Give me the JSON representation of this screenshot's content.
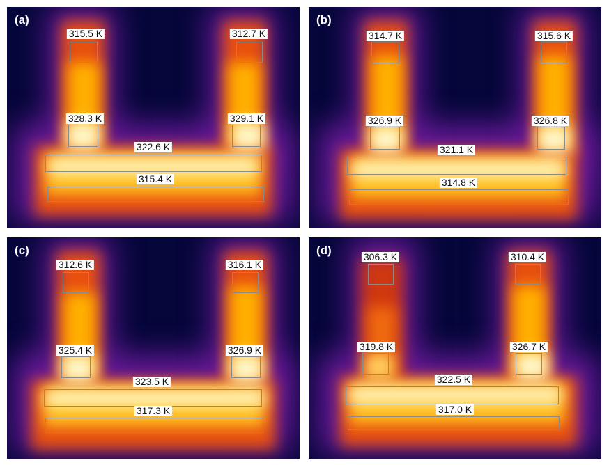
{
  "panels": [
    {
      "id": "a",
      "label": "(a)",
      "top_left": "315.5 K",
      "top_right": "312.7 K",
      "mid_left": "328.3 K",
      "mid_right": "329.1 K",
      "bar_upper": "322.6 K",
      "bar_lower": "315.4 K"
    },
    {
      "id": "b",
      "label": "(b)",
      "top_left": "314.7 K",
      "top_right": "315.6 K",
      "mid_left": "326.9 K",
      "mid_right": "326.8 K",
      "bar_upper": "321.1 K",
      "bar_lower": "314.8 K"
    },
    {
      "id": "c",
      "label": "(c)",
      "top_left": "312.6 K",
      "top_right": "316.1 K",
      "mid_left": "325.4 K",
      "mid_right": "326.9 K",
      "bar_upper": "323.5 K",
      "bar_lower": "317.3 K"
    },
    {
      "id": "d",
      "label": "(d)",
      "top_left": "306.3 K",
      "top_right": "310.4 K",
      "mid_left": "319.8 K",
      "mid_right": "326.7 K",
      "bar_upper": "322.5 K",
      "bar_lower": "317.0 K"
    }
  ],
  "colors": {
    "background": "#05063a",
    "cool": "#7a1fa0",
    "warm": "#e8450f",
    "hot": "#ffb000",
    "hottest": "#fff6c8"
  }
}
